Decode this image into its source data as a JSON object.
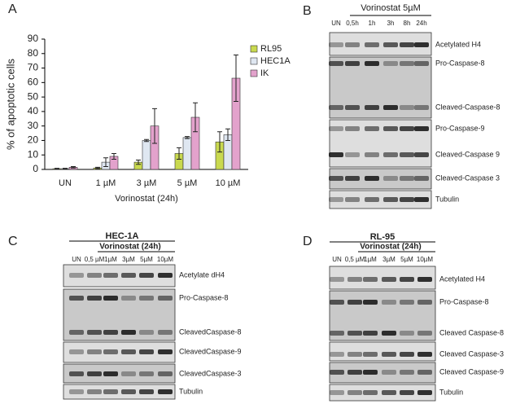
{
  "chart_data": {
    "type": "bar",
    "panel": "A",
    "categories": [
      "UN",
      "1 µM",
      "3 µM",
      "5 µM",
      "10 µM"
    ],
    "series": [
      {
        "name": "RL95",
        "color": "#c9d94f",
        "values": [
          0.5,
          1,
          5,
          11,
          19
        ],
        "errors": [
          0.3,
          0.5,
          1.5,
          4,
          7
        ]
      },
      {
        "name": "HEC1A",
        "color": "#dfe7f1",
        "values": [
          0.5,
          5,
          20,
          22,
          24
        ],
        "errors": [
          0.3,
          3,
          0.7,
          0.7,
          4
        ]
      },
      {
        "name": "IK",
        "color": "#e3a2cc",
        "values": [
          1.5,
          9,
          30,
          36,
          63
        ],
        "errors": [
          0.5,
          2,
          12,
          10,
          16
        ]
      }
    ],
    "y_label": "% of apoptotic cells",
    "x_label": "Vorinostat (24h)",
    "ylim": [
      0,
      90
    ],
    "yticks": [
      0,
      10,
      20,
      30,
      40,
      50,
      60,
      70,
      80,
      90
    ]
  },
  "blots": [
    {
      "panel": "B",
      "header": "Vorinostat 5µM",
      "lanes": [
        "UN",
        "0,5h",
        "1h",
        "3h",
        "8h",
        "24h"
      ],
      "rows": [
        [
          "Acetylated H4"
        ],
        [
          "Pro-Caspase-8",
          "Cleaved-Caspase-8"
        ],
        [
          "Pro-Caspase-9",
          "Cleaved-Caspase 9"
        ],
        [
          "Cleaved-Caspase 3"
        ],
        [
          "Tubulin"
        ]
      ]
    },
    {
      "panel": "C",
      "title": "HEC-1A",
      "header": "Vorinostat (24h)",
      "lanes": [
        "UN",
        "0,5 µM",
        "1µM",
        "3µM",
        "5µM",
        "10µM"
      ],
      "rows": [
        [
          "Acetylate dH4"
        ],
        [
          "Pro-Caspase-8",
          "CleavedCaspase-8"
        ],
        [
          "CleavedCaspase-9"
        ],
        [
          "CleavedCaspase-3"
        ],
        [
          "Tubulin"
        ]
      ]
    },
    {
      "panel": "D",
      "title": "RL-95",
      "header": "Vorinostat (24h)",
      "lanes": [
        "UN",
        "0,5 µM",
        "1µM",
        "3µM",
        "5µM",
        "10µM"
      ],
      "rows": [
        [
          "Acetylated H4"
        ],
        [
          "Pro-Caspase-8",
          "Cleaved Caspase-8"
        ],
        [
          "Cleaved Caspase-3"
        ],
        [
          "Cleaved Caspase-9"
        ],
        [
          "Tubulin"
        ]
      ]
    }
  ]
}
